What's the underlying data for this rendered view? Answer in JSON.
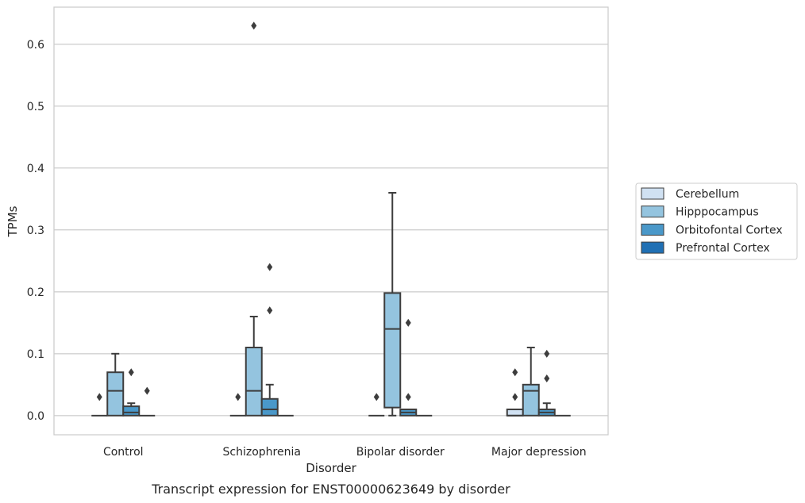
{
  "chart_data": {
    "type": "box",
    "caption": "Transcript expression for ENST00000623649 by disorder",
    "xlabel": "Disorder",
    "ylabel": "TPMs",
    "ylim": [
      -0.031,
      0.66
    ],
    "yticks": [
      0.0,
      0.1,
      0.2,
      0.3,
      0.4,
      0.5,
      0.6
    ],
    "ytick_labels": [
      "0.0",
      "0.1",
      "0.2",
      "0.3",
      "0.4",
      "0.5",
      "0.6"
    ],
    "grid": "horizontal",
    "legend_position": "right",
    "categories": [
      "Control",
      "Schizophrenia",
      "Bipolar disorder",
      "Major depression"
    ],
    "series": [
      {
        "name": "Cerebellum",
        "color": "#d0e1f2",
        "boxes": [
          {
            "category": "Control",
            "min": 0,
            "q1": 0,
            "median": 0,
            "q3": 0,
            "max": 0,
            "outliers": [
              0.03
            ]
          },
          {
            "category": "Schizophrenia",
            "min": 0,
            "q1": 0,
            "median": 0,
            "q3": 0,
            "max": 0,
            "outliers": [
              0.03
            ]
          },
          {
            "category": "Bipolar disorder",
            "min": 0,
            "q1": 0,
            "median": 0,
            "q3": 0,
            "max": 0,
            "outliers": [
              0.03
            ]
          },
          {
            "category": "Major depression",
            "min": 0,
            "q1": 0,
            "median": 0,
            "q3": 0.01,
            "max": 0.01,
            "outliers": [
              0.03,
              0.07
            ]
          }
        ]
      },
      {
        "name": "Hipppocampus",
        "color": "#94c4df",
        "boxes": [
          {
            "category": "Control",
            "min": 0,
            "q1": 0,
            "median": 0.04,
            "q3": 0.07,
            "max": 0.1,
            "outliers": []
          },
          {
            "category": "Schizophrenia",
            "min": 0,
            "q1": 0,
            "median": 0.04,
            "q3": 0.11,
            "max": 0.16,
            "outliers": [
              0.63
            ]
          },
          {
            "category": "Bipolar disorder",
            "min": 0,
            "q1": 0.013,
            "median": 0.14,
            "q3": 0.198,
            "max": 0.36,
            "outliers": []
          },
          {
            "category": "Major depression",
            "min": 0,
            "q1": 0,
            "median": 0.04,
            "q3": 0.05,
            "max": 0.11,
            "outliers": []
          }
        ]
      },
      {
        "name": "Orbitofontal Cortex",
        "color": "#4a98c9",
        "boxes": [
          {
            "category": "Control",
            "min": 0,
            "q1": 0,
            "median": 0.005,
            "q3": 0.015,
            "max": 0.02,
            "outliers": [
              0.07
            ]
          },
          {
            "category": "Schizophrenia",
            "min": 0,
            "q1": 0,
            "median": 0.01,
            "q3": 0.027,
            "max": 0.05,
            "outliers": [
              0.17,
              0.24
            ]
          },
          {
            "category": "Bipolar disorder",
            "min": 0,
            "q1": 0,
            "median": 0.005,
            "q3": 0.01,
            "max": 0.01,
            "outliers": [
              0.03,
              0.15
            ]
          },
          {
            "category": "Major depression",
            "min": 0,
            "q1": 0,
            "median": 0.005,
            "q3": 0.01,
            "max": 0.02,
            "outliers": [
              0.06,
              0.1
            ]
          }
        ]
      },
      {
        "name": "Prefrontal Cortex",
        "color": "#2070b4",
        "boxes": [
          {
            "category": "Control",
            "min": 0,
            "q1": 0,
            "median": 0,
            "q3": 0,
            "max": 0,
            "outliers": [
              0.04
            ]
          },
          {
            "category": "Schizophrenia",
            "min": 0,
            "q1": 0,
            "median": 0,
            "q3": 0,
            "max": 0,
            "outliers": []
          },
          {
            "category": "Bipolar disorder",
            "min": 0,
            "q1": 0,
            "median": 0,
            "q3": 0,
            "max": 0,
            "outliers": []
          },
          {
            "category": "Major depression",
            "min": 0,
            "q1": 0,
            "median": 0,
            "q3": 0,
            "max": 0,
            "outliers": []
          }
        ]
      }
    ]
  }
}
